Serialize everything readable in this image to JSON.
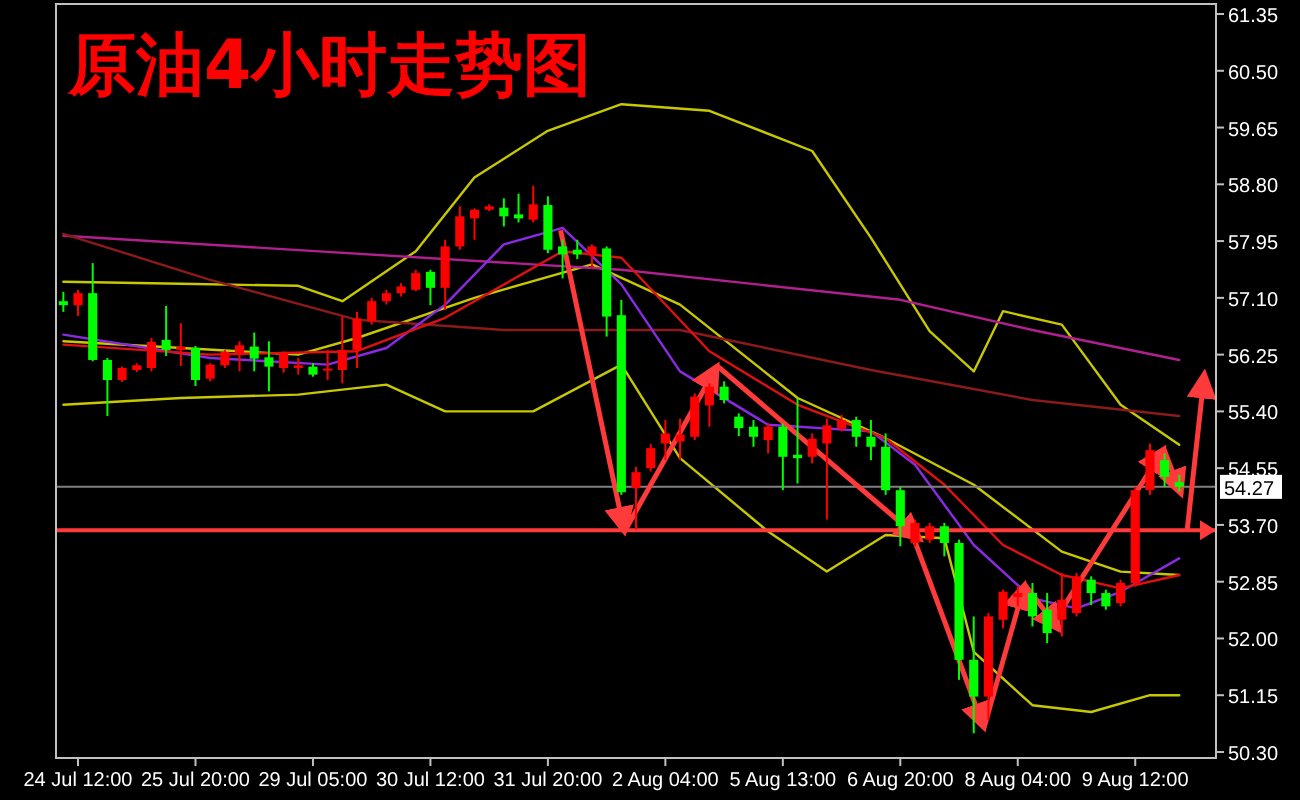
{
  "chart_data": {
    "type": "candlestick",
    "title": "原油4小时走势图",
    "categories": [
      null,
      "24 Jul 12:00",
      null,
      null,
      null,
      null,
      null,
      null,
      null,
      "25 Jul 20:00",
      null,
      null,
      null,
      null,
      null,
      null,
      null,
      "29 Jul 05:00",
      null,
      null,
      null,
      null,
      null,
      null,
      null,
      "30 Jul 12:00",
      null,
      null,
      null,
      null,
      null,
      null,
      null,
      "31 Jul 20:00",
      null,
      null,
      null,
      null,
      null,
      null,
      null,
      "2 Aug 04:00",
      null,
      null,
      null,
      null,
      null,
      null,
      null,
      "5 Aug 13:00",
      null,
      null,
      null,
      null,
      null,
      null,
      null,
      "6 Aug 20:00",
      null,
      null,
      null,
      null,
      null,
      null,
      null,
      "8 Aug 04:00",
      null,
      null,
      null,
      null,
      null,
      null,
      null,
      "9 Aug 12:00",
      null,
      null,
      null
    ],
    "ohlc": [
      [
        57.05,
        57.19,
        56.89,
        56.99
      ],
      [
        56.99,
        57.22,
        56.83,
        57.17
      ],
      [
        57.17,
        57.62,
        56.15,
        56.17
      ],
      [
        56.17,
        56.2,
        55.33,
        55.87
      ],
      [
        55.87,
        56.07,
        55.84,
        56.05
      ],
      [
        56.02,
        56.12,
        55.99,
        56.09
      ],
      [
        56.05,
        56.5,
        56.0,
        56.44
      ],
      [
        56.47,
        56.98,
        56.23,
        56.32
      ],
      [
        56.32,
        56.72,
        56.08,
        56.37
      ],
      [
        56.35,
        56.38,
        55.78,
        55.87
      ],
      [
        55.89,
        56.12,
        55.85,
        56.1
      ],
      [
        56.09,
        56.32,
        56.05,
        56.29
      ],
      [
        56.27,
        56.45,
        56.0,
        56.39
      ],
      [
        56.37,
        56.58,
        56.0,
        56.19
      ],
      [
        56.21,
        56.45,
        55.7,
        56.07
      ],
      [
        56.05,
        56.3,
        55.98,
        56.27
      ],
      [
        56.05,
        56.2,
        55.95,
        56.09
      ],
      [
        56.07,
        56.12,
        55.92,
        55.95
      ],
      [
        56.01,
        56.32,
        55.87,
        56.04
      ],
      [
        56.02,
        56.82,
        55.82,
        56.32
      ],
      [
        56.32,
        56.89,
        56.05,
        56.79
      ],
      [
        56.75,
        57.1,
        56.7,
        57.05
      ],
      [
        57.05,
        57.22,
        57.0,
        57.17
      ],
      [
        57.17,
        57.32,
        57.12,
        57.27
      ],
      [
        57.22,
        57.52,
        57.2,
        57.47
      ],
      [
        57.49,
        57.52,
        56.99,
        57.25
      ],
      [
        57.25,
        57.97,
        56.92,
        57.87
      ],
      [
        57.87,
        58.47,
        57.82,
        58.32
      ],
      [
        58.29,
        58.44,
        57.97,
        58.42
      ],
      [
        58.42,
        58.5,
        58.4,
        58.47
      ],
      [
        58.45,
        58.59,
        58.17,
        58.32
      ],
      [
        58.35,
        58.66,
        58.23,
        58.29
      ],
      [
        58.27,
        58.78,
        58.23,
        58.5
      ],
      [
        58.49,
        58.62,
        57.77,
        57.82
      ],
      [
        57.87,
        57.97,
        57.39,
        57.75
      ],
      [
        57.82,
        57.97,
        57.68,
        57.75
      ],
      [
        57.75,
        57.9,
        57.54,
        57.87
      ],
      [
        57.84,
        57.87,
        56.52,
        56.82
      ],
      [
        56.84,
        57.07,
        54.15,
        54.19
      ],
      [
        54.25,
        54.57,
        53.63,
        54.49
      ],
      [
        54.55,
        54.91,
        54.5,
        54.85
      ],
      [
        54.92,
        55.27,
        54.67,
        55.07
      ],
      [
        54.95,
        55.29,
        54.67,
        55.05
      ],
      [
        55.02,
        55.67,
        54.97,
        55.62
      ],
      [
        55.49,
        55.82,
        55.17,
        55.77
      ],
      [
        55.77,
        55.85,
        55.52,
        55.57
      ],
      [
        55.32,
        55.37,
        55.03,
        55.15
      ],
      [
        55.17,
        55.27,
        54.87,
        55.02
      ],
      [
        54.97,
        55.22,
        54.77,
        55.17
      ],
      [
        55.17,
        55.22,
        54.22,
        54.72
      ],
      [
        54.75,
        55.59,
        54.32,
        54.7
      ],
      [
        54.72,
        55.07,
        54.62,
        54.99
      ],
      [
        54.92,
        55.29,
        53.78,
        55.19
      ],
      [
        55.14,
        55.35,
        55.1,
        55.27
      ],
      [
        55.27,
        55.32,
        54.87,
        55.02
      ],
      [
        55.02,
        55.27,
        54.67,
        54.87
      ],
      [
        54.87,
        55.07,
        54.15,
        54.22
      ],
      [
        54.22,
        54.27,
        53.38,
        53.68
      ],
      [
        53.43,
        53.78,
        53.38,
        53.73
      ],
      [
        53.48,
        53.73,
        53.43,
        53.68
      ],
      [
        53.68,
        53.73,
        53.23,
        53.43
      ],
      [
        53.43,
        53.48,
        51.38,
        51.68
      ],
      [
        51.68,
        52.33,
        50.58,
        51.13
      ],
      [
        51.13,
        52.38,
        50.78,
        52.33
      ],
      [
        52.28,
        52.73,
        52.15,
        52.7
      ],
      [
        52.62,
        52.78,
        52.48,
        52.68
      ],
      [
        52.68,
        52.83,
        52.18,
        52.33
      ],
      [
        52.43,
        52.68,
        51.93,
        52.08
      ],
      [
        52.28,
        52.98,
        52.03,
        52.58
      ],
      [
        52.38,
        52.98,
        52.33,
        52.93
      ],
      [
        52.88,
        52.93,
        52.5,
        52.68
      ],
      [
        52.68,
        52.73,
        52.43,
        52.48
      ],
      [
        52.53,
        52.88,
        52.48,
        52.83
      ],
      [
        52.83,
        54.27,
        52.78,
        54.22
      ],
      [
        54.22,
        54.92,
        54.15,
        54.82
      ],
      [
        54.67,
        54.77,
        54.27,
        54.42
      ],
      [
        54.34,
        54.45,
        54.2,
        54.27
      ]
    ],
    "series": [
      {
        "type": "line",
        "color": "#c8c800",
        "values": [
          57.34,
          null,
          null,
          null,
          null,
          null,
          null,
          null,
          57.31,
          null,
          null,
          null,
          null,
          null,
          null,
          null,
          57.28,
          null,
          null,
          57.05,
          null,
          null,
          null,
          null,
          57.8,
          null,
          null,
          null,
          58.9,
          null,
          null,
          null,
          null,
          59.6,
          null,
          null,
          null,
          null,
          60.0,
          null,
          null,
          null,
          null,
          null,
          59.9,
          null,
          null,
          null,
          null,
          null,
          null,
          59.3,
          null,
          null,
          null,
          58.0,
          null,
          null,
          null,
          56.6,
          null,
          null,
          56.0,
          null,
          56.9,
          null,
          null,
          null,
          56.7,
          null,
          null,
          null,
          55.5,
          null,
          null,
          null,
          54.9
        ]
      },
      {
        "type": "line",
        "color": "#c8c800",
        "values": [
          56.45,
          null,
          null,
          null,
          null,
          null,
          null,
          null,
          null,
          null,
          null,
          null,
          null,
          null,
          null,
          null,
          56.25,
          null,
          null,
          null,
          56.5,
          null,
          null,
          null,
          null,
          null,
          null,
          null,
          57.1,
          null,
          null,
          null,
          null,
          null,
          null,
          null,
          57.6,
          null,
          null,
          null,
          null,
          null,
          57.0,
          null,
          null,
          null,
          null,
          null,
          null,
          null,
          55.6,
          null,
          null,
          null,
          null,
          null,
          55.0,
          null,
          null,
          null,
          null,
          null,
          54.3,
          null,
          null,
          null,
          null,
          null,
          53.3,
          null,
          null,
          null,
          53.0,
          null,
          null,
          null,
          52.95
        ]
      },
      {
        "type": "line",
        "color": "#c8c800",
        "values": [
          55.5,
          null,
          null,
          null,
          null,
          null,
          null,
          null,
          55.6,
          null,
          null,
          null,
          null,
          null,
          null,
          null,
          55.65,
          null,
          null,
          null,
          null,
          null,
          55.8,
          null,
          null,
          null,
          55.4,
          null,
          null,
          null,
          null,
          null,
          55.4,
          null,
          null,
          null,
          null,
          null,
          56.1,
          null,
          null,
          null,
          54.7,
          null,
          null,
          null,
          null,
          null,
          53.6,
          null,
          null,
          null,
          53.0,
          null,
          null,
          null,
          53.55,
          null,
          null,
          null,
          53.5,
          null,
          51.8,
          null,
          null,
          null,
          51.0,
          null,
          null,
          null,
          50.9,
          null,
          null,
          null,
          51.15,
          null,
          51.15
        ]
      },
      {
        "type": "line",
        "color": "#b0208f",
        "values": [
          58.03,
          null,
          null,
          null,
          null,
          null,
          null,
          null,
          null,
          null,
          null,
          null,
          null,
          null,
          null,
          null,
          null,
          null,
          null,
          null,
          null,
          null,
          null,
          null,
          null,
          null,
          null,
          null,
          null,
          null,
          null,
          null,
          null,
          null,
          null,
          null,
          null,
          null,
          57.52,
          null,
          null,
          null,
          null,
          null,
          null,
          null,
          null,
          null,
          null,
          null,
          null,
          null,
          null,
          null,
          null,
          null,
          null,
          57.07,
          null,
          null,
          null,
          null,
          null,
          null,
          null,
          null,
          56.62,
          null,
          null,
          null,
          null,
          null,
          null,
          null,
          null,
          null,
          56.17
        ]
      },
      {
        "type": "line",
        "color": "#8b1a1a",
        "values": [
          58.06,
          null,
          null,
          null,
          null,
          null,
          null,
          null,
          null,
          null,
          57.37,
          null,
          null,
          null,
          null,
          null,
          null,
          null,
          null,
          null,
          56.77,
          null,
          null,
          null,
          null,
          null,
          null,
          null,
          null,
          null,
          56.62,
          null,
          null,
          null,
          null,
          null,
          null,
          null,
          null,
          null,
          null,
          null,
          56.62,
          null,
          null,
          null,
          null,
          null,
          null,
          null,
          null,
          null,
          null,
          null,
          null,
          56.02,
          null,
          null,
          null,
          null,
          null,
          null,
          null,
          null,
          null,
          null,
          55.57,
          null,
          null,
          null,
          null,
          null,
          null,
          null,
          null,
          null,
          55.33
        ]
      },
      {
        "type": "line",
        "color": "#8a2be2",
        "values": [
          56.55,
          null,
          null,
          null,
          null,
          null,
          null,
          null,
          null,
          null,
          56.2,
          null,
          null,
          null,
          null,
          null,
          null,
          null,
          56.1,
          null,
          null,
          null,
          56.35,
          null,
          null,
          null,
          57.0,
          null,
          null,
          null,
          57.9,
          null,
          null,
          null,
          58.15,
          null,
          null,
          null,
          57.3,
          null,
          null,
          null,
          56.0,
          null,
          null,
          null,
          null,
          null,
          55.2,
          null,
          null,
          null,
          null,
          null,
          null,
          55.1,
          null,
          null,
          54.6,
          null,
          null,
          null,
          53.4,
          null,
          null,
          null,
          52.6,
          null,
          null,
          52.45,
          null,
          null,
          52.7,
          null,
          null,
          null,
          53.2
        ]
      },
      {
        "type": "line",
        "color": "#e01010",
        "values": [
          56.4,
          null,
          null,
          null,
          null,
          null,
          null,
          null,
          null,
          null,
          56.25,
          null,
          null,
          null,
          null,
          null,
          null,
          null,
          null,
          null,
          56.3,
          null,
          null,
          null,
          null,
          null,
          56.8,
          null,
          null,
          null,
          null,
          null,
          null,
          null,
          57.8,
          null,
          null,
          null,
          57.7,
          null,
          null,
          null,
          null,
          null,
          56.3,
          null,
          null,
          null,
          null,
          null,
          55.5,
          null,
          null,
          null,
          null,
          null,
          55.0,
          null,
          null,
          null,
          54.3,
          null,
          null,
          null,
          53.4,
          null,
          null,
          null,
          52.95,
          null,
          null,
          null,
          52.75,
          null,
          null,
          null,
          52.95
        ]
      }
    ],
    "ylim": [
      50.21,
      61.5
    ],
    "yticks": [
      {
        "value": 50.3,
        "label": "50.30"
      },
      {
        "value": 51.15,
        "label": "51.15"
      },
      {
        "value": 52,
        "label": "52.00"
      },
      {
        "value": 52.85,
        "label": "52.85"
      },
      {
        "value": 53.7,
        "label": "53.70"
      },
      {
        "value": 54.55,
        "label": "54.55"
      },
      {
        "value": 55.4,
        "label": "55.40"
      },
      {
        "value": 56.25,
        "label": "56.25"
      },
      {
        "value": 57.1,
        "label": "57.10"
      },
      {
        "value": 57.95,
        "label": "57.95"
      },
      {
        "value": 58.8,
        "label": "58.80"
      },
      {
        "value": 59.65,
        "label": "59.65"
      },
      {
        "value": 60.5,
        "label": "60.50"
      },
      {
        "value": 61.35,
        "label": "61.35"
      }
    ],
    "ref_lines": [
      {
        "axis": "y",
        "value": 54.27,
        "label": "54.27",
        "color": "#808080"
      },
      {
        "axis": "y",
        "value": 53.62,
        "color": "#ff3a3a"
      }
    ],
    "grid": false
  }
}
